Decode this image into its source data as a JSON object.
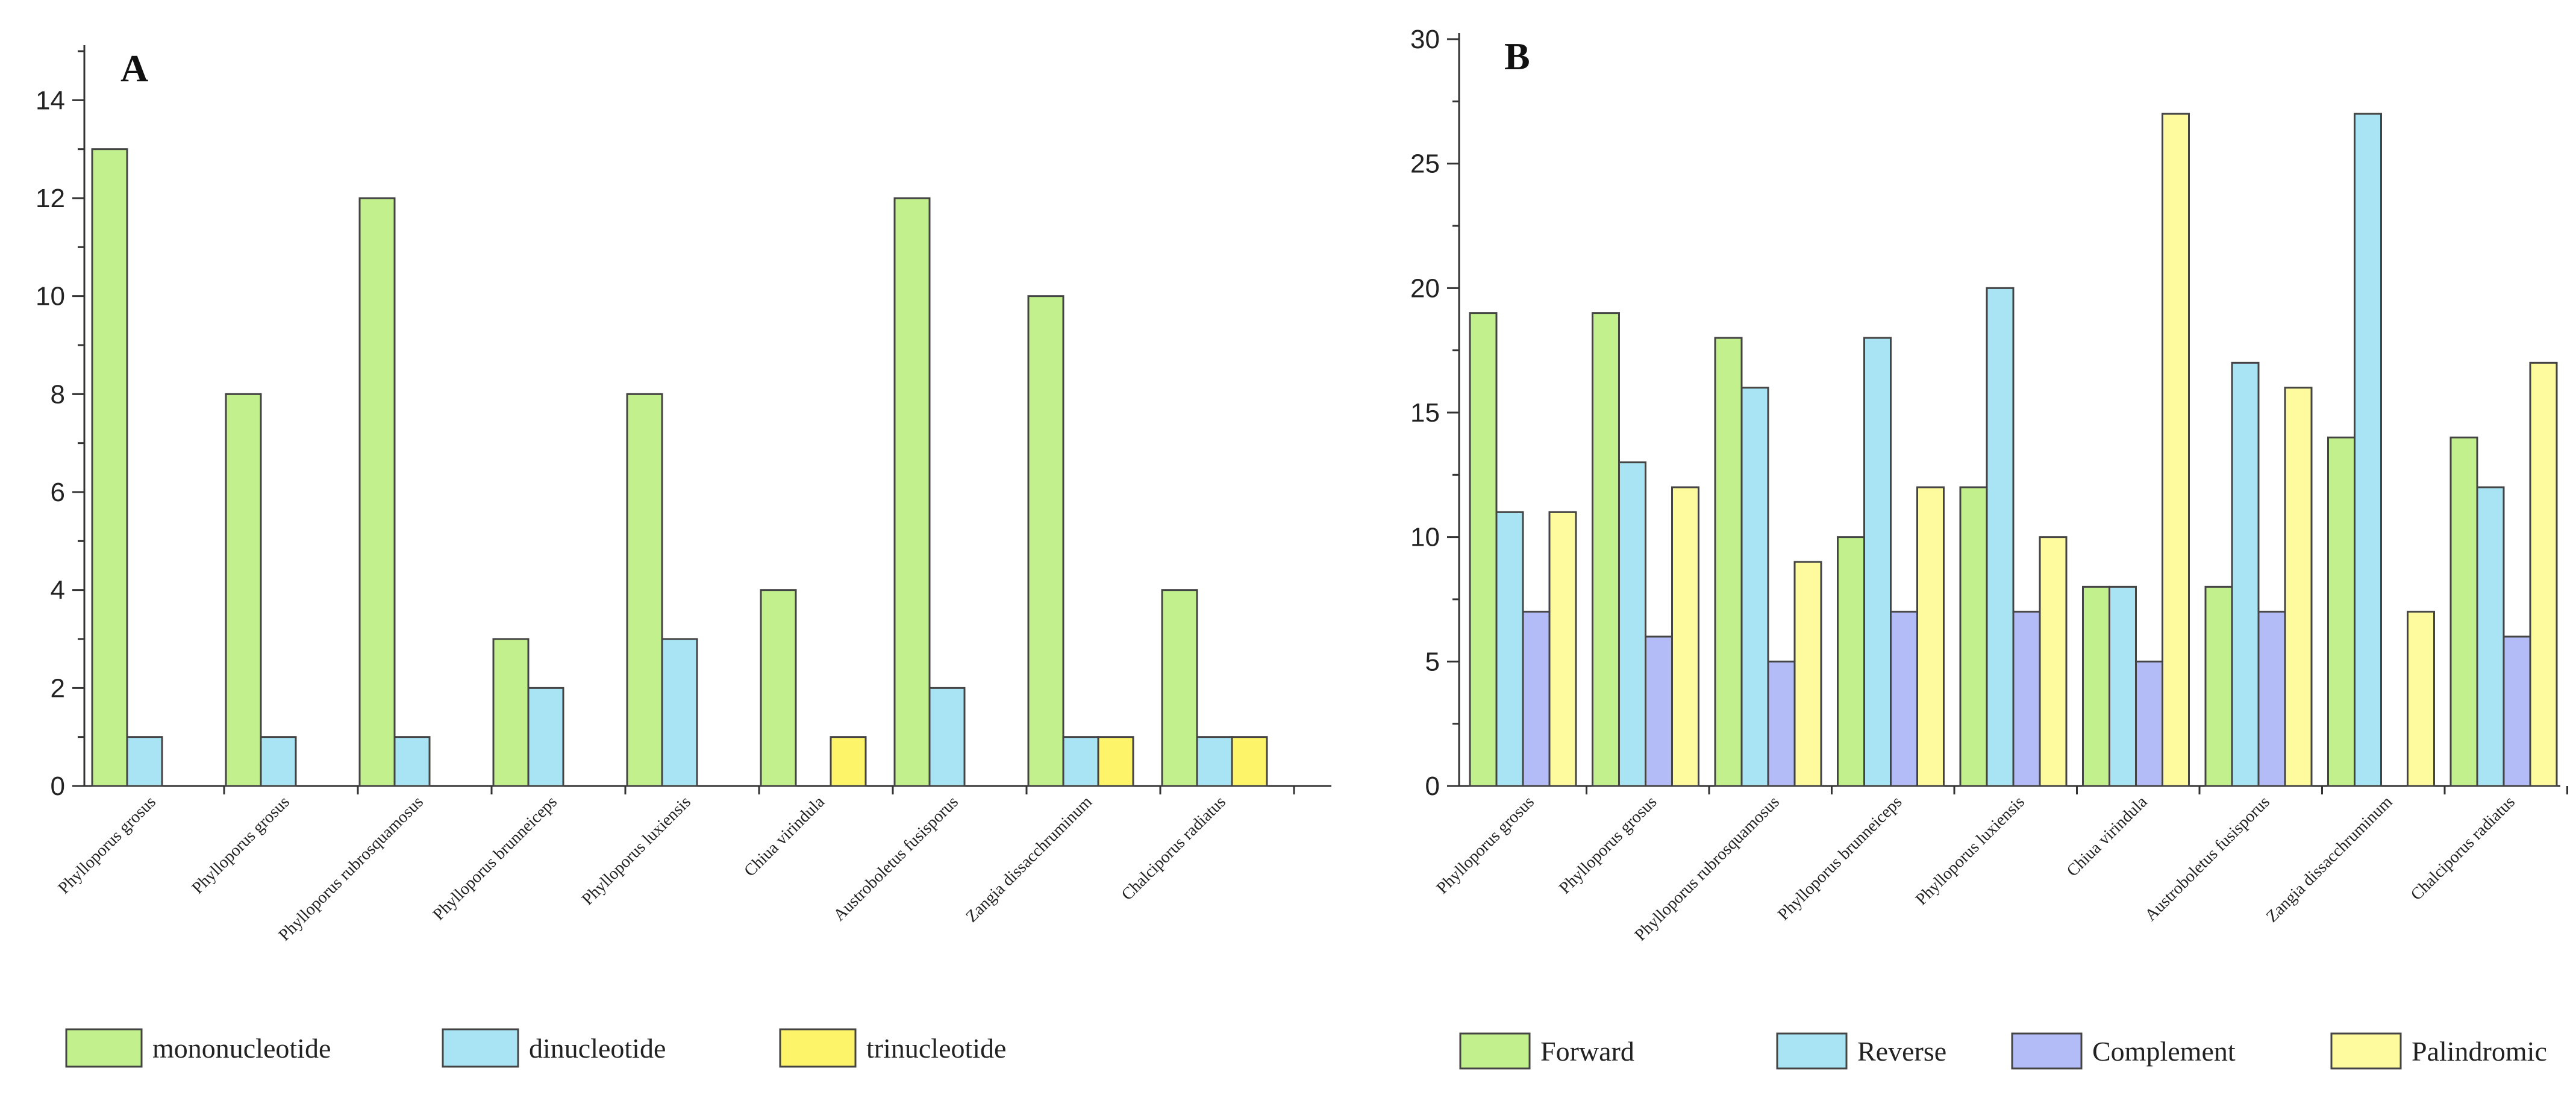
{
  "chart_data": [
    {
      "type": "bar",
      "panel_label": "A",
      "categories": [
        "Phylloporus grosus",
        "Phylloporus grosus",
        "Phylloporus rubrosquamosus",
        "Phylloporus brunneiceps",
        "Phylloporus luxiensis",
        "Chiua virindula",
        "Austroboletus fusisporus",
        "Zangia dissacchruminum",
        "Chalciporus radiatus"
      ],
      "series": [
        {
          "name": "mononucleotide",
          "color": "#c2f08c",
          "values": [
            13,
            8,
            12,
            3,
            8,
            4,
            12,
            10,
            4
          ]
        },
        {
          "name": "dinucleotide",
          "color": "#a8e4f4",
          "values": [
            1,
            1,
            1,
            2,
            3,
            0,
            2,
            1,
            1
          ]
        },
        {
          "name": "trinucleotide",
          "color": "#fef46a",
          "values": [
            0,
            0,
            0,
            0,
            0,
            1,
            0,
            1,
            1
          ]
        }
      ],
      "ylim": [
        0,
        15
      ],
      "yticks": [
        "0",
        "2",
        "4",
        "6",
        "8",
        "10",
        "12",
        "14"
      ],
      "legend": [
        "mononucleotide",
        "dinucleotide",
        "trinucleotide"
      ]
    },
    {
      "type": "bar",
      "panel_label": "B",
      "categories": [
        "Phylloporus grosus",
        "Phylloporus grosus",
        "Phylloporus rubrosquamosus",
        "Phylloporus brunneiceps",
        "Phylloporus luxiensis",
        "Chiua virindula",
        "Austroboletus fusisporus",
        "Zangia dissacchruminum",
        "Chalciporus radiatus"
      ],
      "series": [
        {
          "name": "Forward",
          "color": "#c2f08c",
          "values": [
            19,
            19,
            18,
            10,
            12,
            8,
            8,
            14,
            14
          ]
        },
        {
          "name": "Reverse",
          "color": "#a8e4f4",
          "values": [
            11,
            13,
            16,
            18,
            20,
            8,
            17,
            27,
            12
          ]
        },
        {
          "name": "Complement",
          "color": "#b4bcf8",
          "values": [
            7,
            6,
            5,
            7,
            7,
            5,
            7,
            0,
            6
          ]
        },
        {
          "name": "Palindromic",
          "color": "#fefa9e",
          "values": [
            11,
            12,
            9,
            12,
            10,
            27,
            16,
            7,
            17
          ]
        }
      ],
      "ylim": [
        0,
        30
      ],
      "yticks": [
        "0",
        "5",
        "10",
        "15",
        "20",
        "25",
        "30"
      ],
      "legend": [
        "Forward",
        "Reverse",
        "Complement",
        "Palindromic"
      ]
    }
  ]
}
